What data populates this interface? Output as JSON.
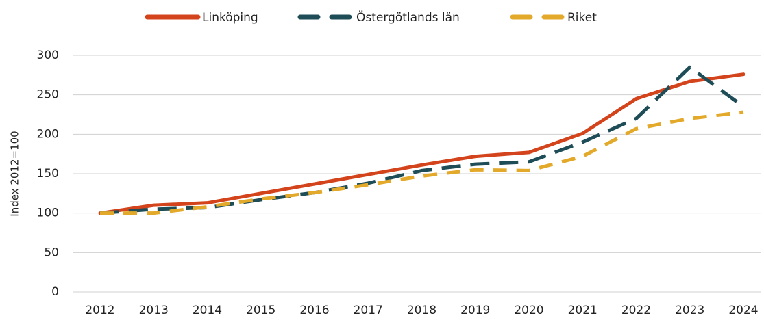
{
  "chart_data": {
    "type": "line",
    "y_label": "Index 2012=100",
    "categories": [
      "2012",
      "2013",
      "2014",
      "2015",
      "2016",
      "2017",
      "2018",
      "2019",
      "2020",
      "2021",
      "2022",
      "2023",
      "2024"
    ],
    "series": [
      {
        "name": "Linköping",
        "color": "#d4441c",
        "line_style": "solid",
        "values": [
          100,
          110,
          113,
          125,
          137,
          149,
          161,
          172,
          177,
          201,
          245,
          267,
          276
        ]
      },
      {
        "name": "Östergötlands län",
        "color": "#1e4d57",
        "line_style": "dashed",
        "values": [
          100,
          105,
          107,
          117,
          126,
          138,
          154,
          162,
          165,
          190,
          220,
          285,
          235
        ]
      },
      {
        "name": "Riket",
        "color": "#e3a92a",
        "line_style": "dashed",
        "values": [
          100,
          100,
          108,
          118,
          126,
          136,
          147,
          155,
          154,
          172,
          207,
          220,
          228
        ]
      }
    ],
    "ylim": [
      0,
      300
    ],
    "yticks": [
      0,
      50,
      100,
      150,
      200,
      250,
      300
    ],
    "grid": true,
    "legend": "top"
  }
}
